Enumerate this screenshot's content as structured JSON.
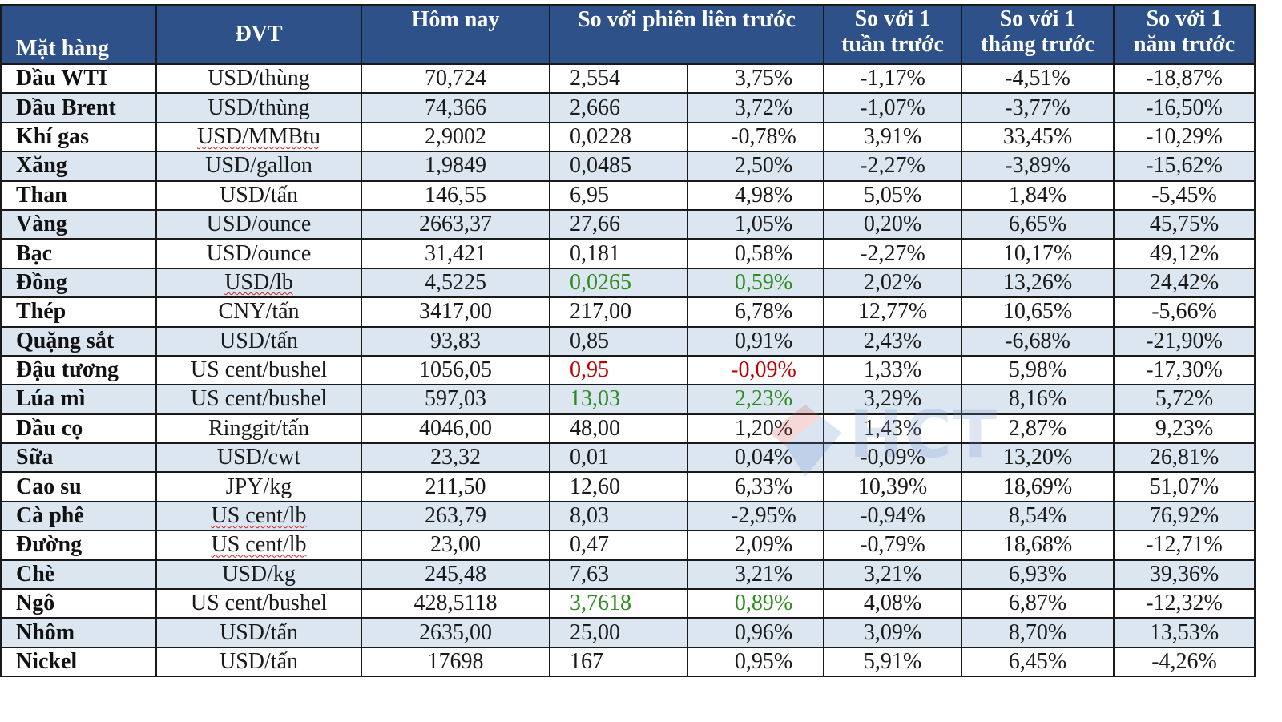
{
  "headers": {
    "item": "Mặt hàng",
    "unit": "ĐVT",
    "today": "Hôm nay",
    "prev_session": "So với phiên liên trước",
    "week_l1": "So với 1",
    "week_l2": "tuần trước",
    "month_l1": "So với 1",
    "month_l2": "tháng trước",
    "year_l1": "So với 1",
    "year_l2": "năm trước"
  },
  "rows": [
    {
      "name": "Dầu WTI",
      "unit": "USD/thùng",
      "today": "70,724",
      "chg": "2,554",
      "pct": "3,75%",
      "week": "-1,17%",
      "month": "-4,51%",
      "year": "-18,87%",
      "color": ""
    },
    {
      "name": "Dầu Brent",
      "unit": "USD/thùng",
      "today": "74,366",
      "chg": "2,666",
      "pct": "3,72%",
      "week": "-1,07%",
      "month": "-3,77%",
      "year": "-16,50%",
      "color": ""
    },
    {
      "name": "Khí gas",
      "unit": "USD/MMBtu",
      "today": "2,9002",
      "chg": "0,0228",
      "pct": "-0,78%",
      "week": "3,91%",
      "month": "33,45%",
      "year": "-10,29%",
      "color": ""
    },
    {
      "name": "Xăng",
      "unit": "USD/gallon",
      "today": "1,9849",
      "chg": "0,0485",
      "pct": "2,50%",
      "week": "-2,27%",
      "month": "-3,89%",
      "year": "-15,62%",
      "color": ""
    },
    {
      "name": "Than",
      "unit": "USD/tấn",
      "today": "146,55",
      "chg": "6,95",
      "pct": "4,98%",
      "week": "5,05%",
      "month": "1,84%",
      "year": "-5,45%",
      "color": ""
    },
    {
      "name": "Vàng",
      "unit": "USD/ounce",
      "today": "2663,37",
      "chg": "27,66",
      "pct": "1,05%",
      "week": "0,20%",
      "month": "6,65%",
      "year": "45,75%",
      "color": ""
    },
    {
      "name": "Bạc",
      "unit": "USD/ounce",
      "today": "31,421",
      "chg": "0,181",
      "pct": "0,58%",
      "week": "-2,27%",
      "month": "10,17%",
      "year": "49,12%",
      "color": ""
    },
    {
      "name": "Đồng",
      "unit": "USD/lb",
      "today": "4,5225",
      "chg": "0,0265",
      "pct": "0,59%",
      "week": "2,02%",
      "month": "13,26%",
      "year": "24,42%",
      "color": "green"
    },
    {
      "name": "Thép",
      "unit": "CNY/tấn",
      "today": "3417,00",
      "chg": "217,00",
      "pct": "6,78%",
      "week": "12,77%",
      "month": "10,65%",
      "year": "-5,66%",
      "color": ""
    },
    {
      "name": "Quặng sắt",
      "unit": "USD/tấn",
      "today": "93,83",
      "chg": "0,85",
      "pct": "0,91%",
      "week": "2,43%",
      "month": "-6,68%",
      "year": "-21,90%",
      "color": ""
    },
    {
      "name": "Đậu tương",
      "unit": "US cent/bushel",
      "today": "1056,05",
      "chg": "0,95",
      "pct": "-0,09%",
      "week": "1,33%",
      "month": "5,98%",
      "year": "-17,30%",
      "color": "red"
    },
    {
      "name": "Lúa mì",
      "unit": "US cent/bushel",
      "today": "597,03",
      "chg": "13,03",
      "pct": "2,23%",
      "week": "3,29%",
      "month": "8,16%",
      "year": "5,72%",
      "color": "green"
    },
    {
      "name": "Dầu cọ",
      "unit": "Ringgit/tấn",
      "today": "4046,00",
      "chg": "48,00",
      "pct": "1,20%",
      "week": "1,43%",
      "month": "2,87%",
      "year": "9,23%",
      "color": ""
    },
    {
      "name": "Sữa",
      "unit": "USD/cwt",
      "today": "23,32",
      "chg": "0,01",
      "pct": "0,04%",
      "week": "-0,09%",
      "month": "13,20%",
      "year": "26,81%",
      "color": ""
    },
    {
      "name": "Cao su",
      "unit": "JPY/kg",
      "today": "211,50",
      "chg": "12,60",
      "pct": "6,33%",
      "week": "10,39%",
      "month": "18,69%",
      "year": "51,07%",
      "color": ""
    },
    {
      "name": "Cà phê",
      "unit": "US cent/lb",
      "today": "263,79",
      "chg": "8,03",
      "pct": "-2,95%",
      "week": "-0,94%",
      "month": "8,54%",
      "year": "76,92%",
      "color": ""
    },
    {
      "name": "Đường",
      "unit": "US cent/lb",
      "today": "23,00",
      "chg": "0,47",
      "pct": "2,09%",
      "week": "-0,79%",
      "month": "18,68%",
      "year": "-12,71%",
      "color": ""
    },
    {
      "name": "Chè",
      "unit": "USD/kg",
      "today": "245,48",
      "chg": "7,63",
      "pct": "3,21%",
      "week": "3,21%",
      "month": "6,93%",
      "year": "39,36%",
      "color": ""
    },
    {
      "name": "Ngô",
      "unit": "US cent/bushel",
      "today": "428,5118",
      "chg": "3,7618",
      "pct": "0,89%",
      "week": "4,08%",
      "month": "6,87%",
      "year": "-12,32%",
      "color": "green"
    },
    {
      "name": "Nhôm",
      "unit": "USD/tấn",
      "today": "2635,00",
      "chg": "25,00",
      "pct": "0,96%",
      "week": "3,09%",
      "month": "8,70%",
      "year": "13,53%",
      "color": ""
    },
    {
      "name": "Nickel",
      "unit": "USD/tấn",
      "today": "17698",
      "chg": "167",
      "pct": "0,95%",
      "week": "5,91%",
      "month": "6,45%",
      "year": "-4,26%",
      "color": ""
    }
  ],
  "squiggle_units": [
    "USD/MMBtu",
    "USD/lb",
    "US cent/lb"
  ],
  "watermark": {
    "text": "HCT",
    "colors": {
      "red": "#d9534f",
      "blue": "#5b86c9"
    }
  }
}
